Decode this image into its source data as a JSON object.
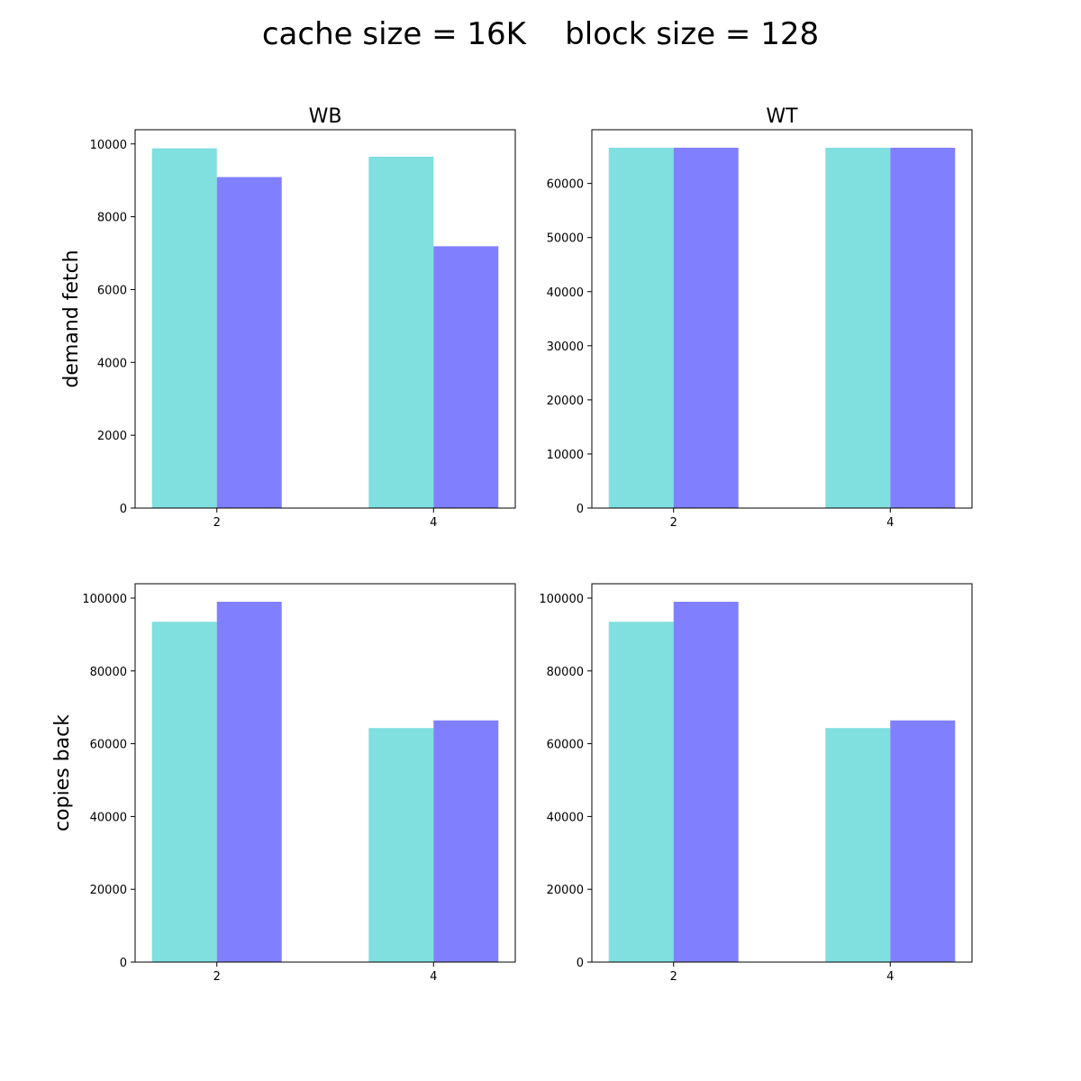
{
  "title": "cache size = 16K    block size = 128",
  "colors": {
    "series_a": "#80dfdf",
    "series_b": "#8080ff"
  },
  "chart_data": [
    {
      "type": "bar",
      "panel": "top-left",
      "title": "WB",
      "ylabel": "demand fetch",
      "categories": [
        "2",
        "4"
      ],
      "series": [
        {
          "values": [
            9880,
            9650
          ]
        },
        {
          "values": [
            9090,
            7190
          ]
        }
      ],
      "ylim": [
        0,
        10390
      ],
      "yticks": [
        0,
        2000,
        4000,
        6000,
        8000,
        10000
      ],
      "grid": false
    },
    {
      "type": "bar",
      "panel": "top-right",
      "title": "WT",
      "ylabel": "",
      "categories": [
        "2",
        "4"
      ],
      "series": [
        {
          "values": [
            66600,
            66600
          ]
        },
        {
          "values": [
            66600,
            66600
          ]
        }
      ],
      "ylim": [
        0,
        69930
      ],
      "yticks": [
        0,
        10000,
        20000,
        30000,
        40000,
        50000,
        60000
      ],
      "grid": false
    },
    {
      "type": "bar",
      "panel": "bottom-left",
      "title": "",
      "ylabel": "copies back",
      "categories": [
        "2",
        "4"
      ],
      "series": [
        {
          "values": [
            93500,
            64300
          ]
        },
        {
          "values": [
            99000,
            66400
          ]
        }
      ],
      "ylim": [
        0,
        103950
      ],
      "yticks": [
        0,
        20000,
        40000,
        60000,
        80000,
        100000
      ],
      "grid": false
    },
    {
      "type": "bar",
      "panel": "bottom-right",
      "title": "",
      "ylabel": "",
      "categories": [
        "2",
        "4"
      ],
      "series": [
        {
          "values": [
            93500,
            64300
          ]
        },
        {
          "values": [
            99000,
            66400
          ]
        }
      ],
      "ylim": [
        0,
        103950
      ],
      "yticks": [
        0,
        20000,
        40000,
        60000,
        80000,
        100000
      ],
      "grid": false
    }
  ]
}
